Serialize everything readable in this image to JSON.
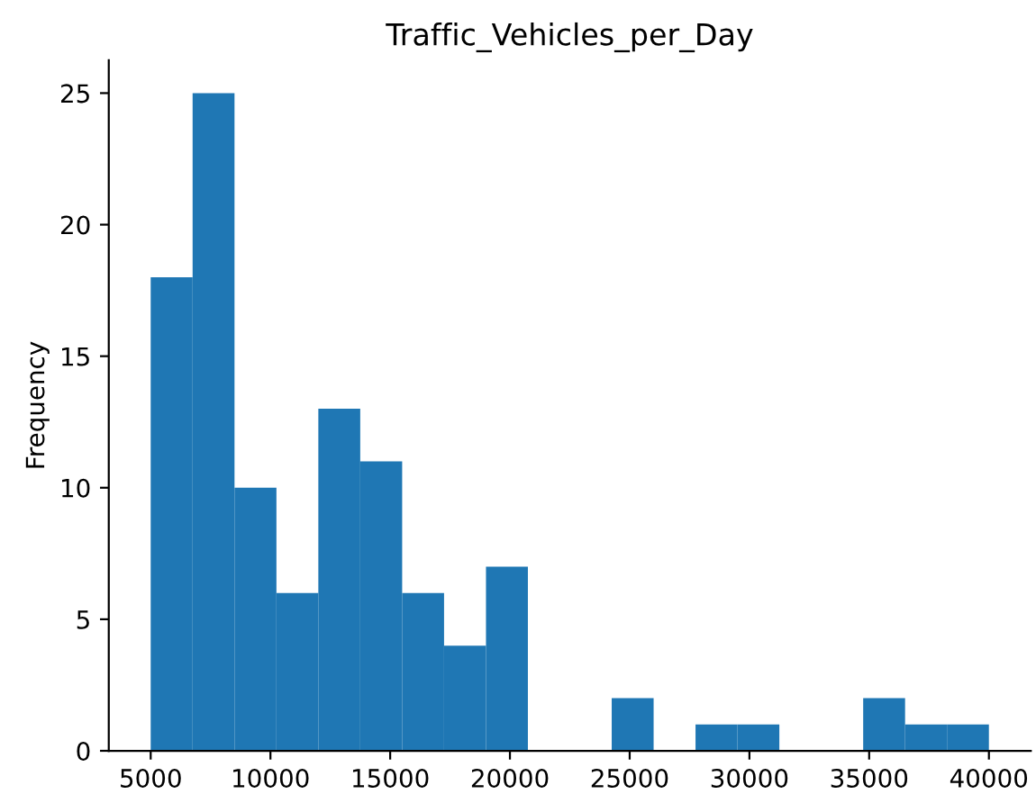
{
  "chart_data": {
    "type": "histogram",
    "title": "Traffic_Vehicles_per_Day",
    "ylabel": "Frequency",
    "bins": [
      5000,
      6750,
      8500,
      10250,
      12000,
      13750,
      15500,
      17250,
      19000,
      20750,
      22500,
      24250,
      26000,
      27750,
      29500,
      31250,
      33000,
      34750,
      36500,
      38250,
      40000
    ],
    "values": [
      18,
      25,
      10,
      6,
      13,
      11,
      6,
      4,
      7,
      0,
      0,
      2,
      0,
      1,
      1,
      0,
      0,
      2,
      1,
      1
    ],
    "color": "#1f77b4",
    "xlim": [
      3250,
      41750
    ],
    "ylim": [
      0,
      26.25
    ],
    "xticks": [
      5000,
      10000,
      15000,
      20000,
      25000,
      30000,
      35000,
      40000
    ],
    "yticks": [
      0,
      5,
      10,
      15,
      20,
      25
    ],
    "grid": false
  }
}
